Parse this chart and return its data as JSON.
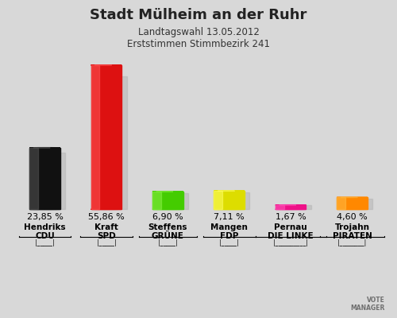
{
  "title": "Stadt Mülheim an der Ruhr",
  "subtitle1": "Landtagswahl 13.05.2012",
  "subtitle2": "Erststimmen Stimmbezirk 241",
  "categories_line1": [
    "Hendriks",
    "Kraft",
    "Steffens",
    "Mangen",
    "Pernau",
    "Trojahn"
  ],
  "categories_line2": [
    "CDU",
    "SPD",
    "GRÜNE",
    "FDP",
    "DIE LINKE",
    "PIRATEN"
  ],
  "values": [
    23.85,
    55.86,
    6.9,
    7.11,
    1.67,
    4.6
  ],
  "value_labels": [
    "23,85 %",
    "55,86 %",
    "6,90 %",
    "7,11 %",
    "1,67 %",
    "4,60 %"
  ],
  "bar_colors": [
    "#111111",
    "#dd1111",
    "#44cc00",
    "#dddd00",
    "#ee1188",
    "#ff8800"
  ],
  "bar_highlight_colors": [
    "#555555",
    "#ff5555",
    "#88ee44",
    "#ffff66",
    "#ff55bb",
    "#ffbb44"
  ],
  "background_color_top": "#d8d8d8",
  "background_color_bottom": "#c0c0c0",
  "ylim": [
    0,
    62
  ],
  "title_fontsize": 13,
  "subtitle_fontsize": 8.5,
  "value_fontsize": 8,
  "label_fontsize": 7.5,
  "bar_width": 0.5
}
